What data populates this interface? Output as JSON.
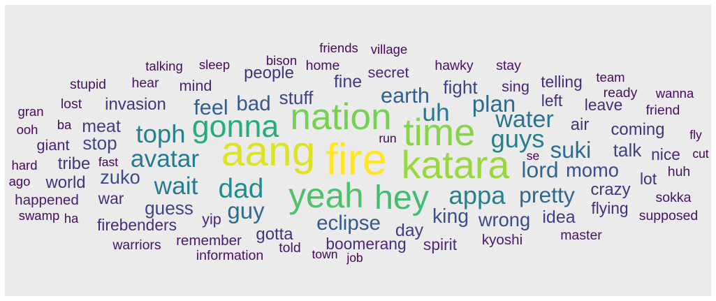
{
  "chart_data": {
    "type": "wordcloud",
    "title": "",
    "background_color": "#ebebeb",
    "palette": "viridis",
    "words": [
      {
        "text": "fire",
        "weight": 100
      },
      {
        "text": "aang",
        "weight": 96
      },
      {
        "text": "katara",
        "weight": 88
      },
      {
        "text": "time",
        "weight": 86
      },
      {
        "text": "nation",
        "weight": 84
      },
      {
        "text": "yeah",
        "weight": 78
      },
      {
        "text": "hey",
        "weight": 76
      },
      {
        "text": "gonna",
        "weight": 70
      },
      {
        "text": "dad",
        "weight": 60
      },
      {
        "text": "appa",
        "weight": 56
      },
      {
        "text": "guys",
        "weight": 56
      },
      {
        "text": "toph",
        "weight": 56
      },
      {
        "text": "avatar",
        "weight": 54
      },
      {
        "text": "wait",
        "weight": 54
      },
      {
        "text": "uh",
        "weight": 54
      },
      {
        "text": "water",
        "weight": 52
      },
      {
        "text": "plan",
        "weight": 50
      },
      {
        "text": "suki",
        "weight": 50
      },
      {
        "text": "guy",
        "weight": 50
      },
      {
        "text": "pretty",
        "weight": 48
      },
      {
        "text": "lord",
        "weight": 48
      },
      {
        "text": "feel",
        "weight": 46
      },
      {
        "text": "earth",
        "weight": 46
      },
      {
        "text": "bad",
        "weight": 44
      },
      {
        "text": "eclipse",
        "weight": 44
      },
      {
        "text": "king",
        "weight": 42
      },
      {
        "text": "wrong",
        "weight": 40
      },
      {
        "text": "zuko",
        "weight": 40
      },
      {
        "text": "momo",
        "weight": 40
      },
      {
        "text": "stuff",
        "weight": 38
      },
      {
        "text": "guess",
        "weight": 38
      },
      {
        "text": "stop",
        "weight": 38
      },
      {
        "text": "talk",
        "weight": 38
      },
      {
        "text": "fight",
        "weight": 38
      },
      {
        "text": "meat",
        "weight": 36
      },
      {
        "text": "fine",
        "weight": 36
      },
      {
        "text": "day",
        "weight": 36
      },
      {
        "text": "idea",
        "weight": 36
      },
      {
        "text": "people",
        "weight": 34
      },
      {
        "text": "invasion",
        "weight": 34
      },
      {
        "text": "coming",
        "weight": 34
      },
      {
        "text": "crazy",
        "weight": 34
      },
      {
        "text": "gotta",
        "weight": 34
      },
      {
        "text": "tribe",
        "weight": 34
      },
      {
        "text": "world",
        "weight": 34
      },
      {
        "text": "air",
        "weight": 34
      },
      {
        "text": "telling",
        "weight": 32
      },
      {
        "text": "lot",
        "weight": 32
      },
      {
        "text": "flying",
        "weight": 32
      },
      {
        "text": "leave",
        "weight": 32
      },
      {
        "text": "nice",
        "weight": 32
      },
      {
        "text": "firebenders",
        "weight": 32
      },
      {
        "text": "boomerang",
        "weight": 32
      },
      {
        "text": "spirit",
        "weight": 32
      },
      {
        "text": "left",
        "weight": 32
      },
      {
        "text": "war",
        "weight": 32
      },
      {
        "text": "mind",
        "weight": 30
      },
      {
        "text": "secret",
        "weight": 30
      },
      {
        "text": "sing",
        "weight": 30
      },
      {
        "text": "yip",
        "weight": 30
      },
      {
        "text": "giant",
        "weight": 30
      },
      {
        "text": "happened",
        "weight": 28
      },
      {
        "text": "remember",
        "weight": 28
      },
      {
        "text": "kyoshi",
        "weight": 28
      },
      {
        "text": "master",
        "weight": 26
      },
      {
        "text": "warriors",
        "weight": 26
      },
      {
        "text": "information",
        "weight": 26
      },
      {
        "text": "told",
        "weight": 26
      },
      {
        "text": "huh",
        "weight": 26
      },
      {
        "text": "sokka",
        "weight": 26
      },
      {
        "text": "supposed",
        "weight": 26
      },
      {
        "text": "ready",
        "weight": 26
      },
      {
        "text": "friend",
        "weight": 26
      },
      {
        "text": "hawky",
        "weight": 26
      },
      {
        "text": "stay",
        "weight": 26
      },
      {
        "text": "stupid",
        "weight": 26
      },
      {
        "text": "hear",
        "weight": 26
      },
      {
        "text": "lost",
        "weight": 26
      },
      {
        "text": "home",
        "weight": 26
      },
      {
        "text": "talking",
        "weight": 24
      },
      {
        "text": "sleep",
        "weight": 24
      },
      {
        "text": "village",
        "weight": 24
      },
      {
        "text": "friends",
        "weight": 24
      },
      {
        "text": "bison",
        "weight": 24
      },
      {
        "text": "team",
        "weight": 24
      },
      {
        "text": "wanna",
        "weight": 24
      },
      {
        "text": "gran",
        "weight": 24
      },
      {
        "text": "ooh",
        "weight": 24
      },
      {
        "text": "ba",
        "weight": 24
      },
      {
        "text": "hard",
        "weight": 24
      },
      {
        "text": "ago",
        "weight": 24
      },
      {
        "text": "swamp",
        "weight": 24
      },
      {
        "text": "ha",
        "weight": 24
      },
      {
        "text": "fly",
        "weight": 22
      },
      {
        "text": "cut",
        "weight": 22
      },
      {
        "text": "run",
        "weight": 22
      },
      {
        "text": "fast",
        "weight": 22
      },
      {
        "text": "se",
        "weight": 22
      },
      {
        "text": "town",
        "weight": 22
      },
      {
        "text": "job",
        "weight": 22
      }
    ]
  }
}
